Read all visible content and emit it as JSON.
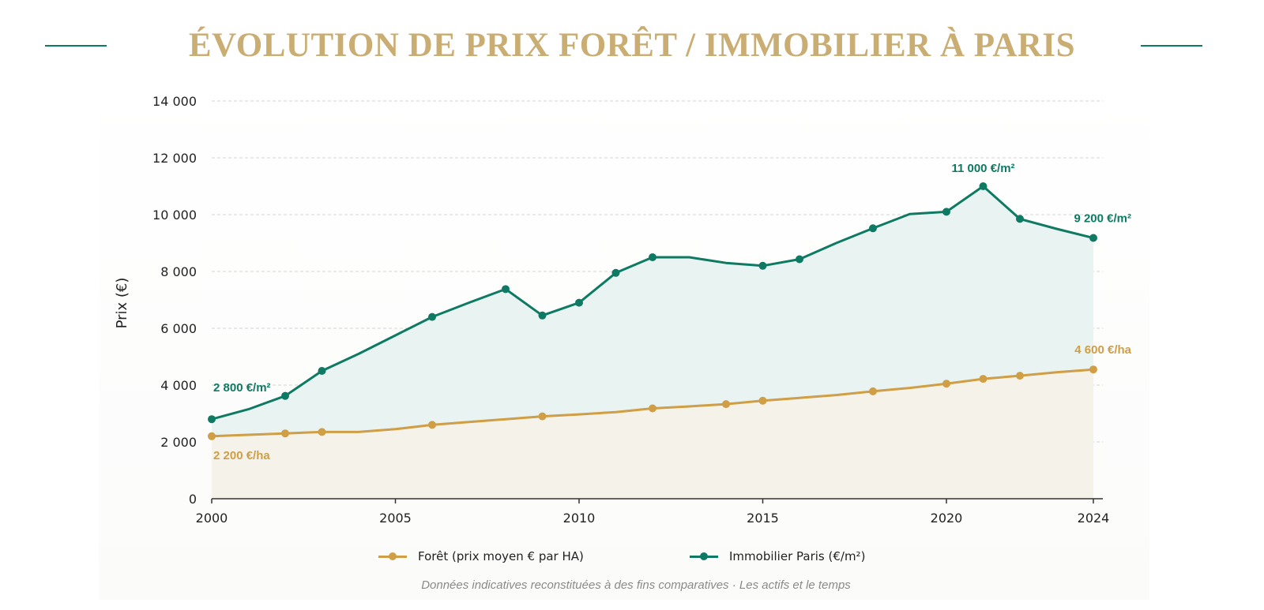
{
  "page": {
    "title": "ÉVOLUTION DE PRIX FORÊT / IMMOBILIER À PARIS",
    "caption": "Données indicatives reconstituées à des fins comparatives · Les actifs et le temps"
  },
  "colors": {
    "title": "#c9ad73",
    "accent_green": "#0e7a63",
    "accent_gold": "#cf9e45",
    "grid": "#d4d4d4",
    "axis": "#333333",
    "green_fill": "#e9f3f1",
    "gold_fill": "#f5f2ea"
  },
  "chart_data": {
    "type": "line",
    "title": "ÉVOLUTION DE PRIX FORÊT / IMMOBILIER À PARIS",
    "xlabel": "",
    "ylabel": "Prix (€)",
    "xlim": [
      2000,
      2024
    ],
    "ylim": [
      0,
      14000
    ],
    "x_ticks": [
      2000,
      2005,
      2010,
      2015,
      2020,
      2024
    ],
    "y_ticks": [
      0,
      2000,
      4000,
      6000,
      8000,
      10000,
      12000,
      14000
    ],
    "y_tick_labels": [
      "0",
      "2 000",
      "4 000",
      "6 000",
      "8 000",
      "10 000",
      "12 000",
      "14 000"
    ],
    "grid": "horizontal dashed",
    "legend_position": "bottom-center",
    "series": [
      {
        "name": "Forêt (prix moyen € par HA)",
        "color": "#cf9e45",
        "area_fill": true,
        "x": [
          2000,
          2001,
          2002,
          2003,
          2004,
          2005,
          2006,
          2007,
          2008,
          2009,
          2010,
          2011,
          2012,
          2013,
          2014,
          2015,
          2016,
          2017,
          2018,
          2019,
          2020,
          2021,
          2022,
          2023,
          2024
        ],
        "values": [
          2200,
          2250,
          2300,
          2350,
          2350,
          2450,
          2600,
          2700,
          2800,
          2900,
          2970,
          3050,
          3180,
          3250,
          3330,
          3450,
          3550,
          3650,
          3780,
          3900,
          4050,
          4220,
          4330,
          4450,
          4550
        ],
        "markers": [
          2000,
          2002,
          2003,
          2006,
          2009,
          2012,
          2014,
          2015,
          2018,
          2020,
          2021,
          2022,
          2024
        ],
        "annotations": [
          {
            "x": 2000,
            "text": "2 200 €/ha",
            "position": "below"
          },
          {
            "x": 2024,
            "text": "4 600 €/ha",
            "position": "above"
          }
        ]
      },
      {
        "name": "Immobilier Paris (€/m²)",
        "color": "#0e7a63",
        "area_fill": true,
        "x": [
          2000,
          2001,
          2002,
          2003,
          2004,
          2005,
          2006,
          2007,
          2008,
          2009,
          2010,
          2011,
          2012,
          2013,
          2014,
          2015,
          2016,
          2017,
          2018,
          2019,
          2020,
          2021,
          2022,
          2023,
          2024
        ],
        "values": [
          2800,
          3150,
          3620,
          4500,
          5100,
          5750,
          6400,
          6900,
          7380,
          6450,
          6900,
          7950,
          8500,
          8500,
          8300,
          8200,
          8430,
          9000,
          9520,
          10020,
          10100,
          11000,
          9850,
          9500,
          9180
        ],
        "markers": [
          2000,
          2002,
          2003,
          2006,
          2008,
          2009,
          2010,
          2011,
          2012,
          2015,
          2016,
          2018,
          2020,
          2021,
          2022,
          2024
        ],
        "annotations": [
          {
            "x": 2000,
            "text": "2 800 €/m²",
            "position": "above"
          },
          {
            "x": 2021,
            "text": "11 000 €/m²",
            "position": "above"
          },
          {
            "x": 2024,
            "text": "9 200 €/m²",
            "position": "above"
          }
        ]
      }
    ]
  }
}
